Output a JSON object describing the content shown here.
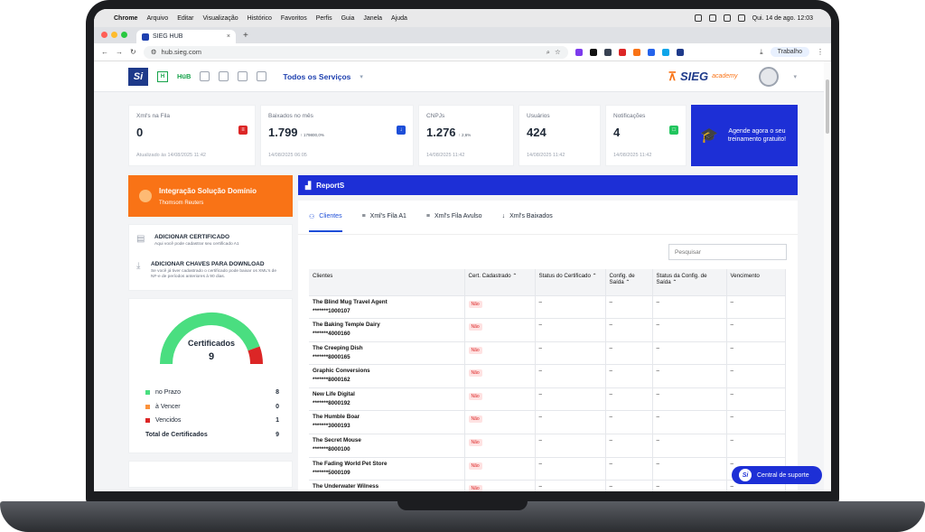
{
  "mac_menu": {
    "app": "Chrome",
    "items": [
      "Arquivo",
      "Editar",
      "Visualização",
      "Histórico",
      "Favoritos",
      "Perfis",
      "Guia",
      "Janela",
      "Ajuda"
    ],
    "datetime": "Qui. 14 de ago.  12:03"
  },
  "browser": {
    "tab_title": "SIEG HUB",
    "url": "hub.sieg.com",
    "profile": "Trabalho"
  },
  "nav": {
    "logo": "Si",
    "hub": "HüB",
    "services": "Todos os Serviços",
    "brand": "SIEG",
    "academy": "academy"
  },
  "stats": [
    {
      "label": "Xml's na Fila",
      "value": "0",
      "sub": "",
      "updated": "Atualizado às 14/08/2025 11:42",
      "badge_color": "#dc2626"
    },
    {
      "label": "Baixados no mês",
      "value": "1.799",
      "sub": "↑ 179800,0%",
      "updated": "14/08/2025 06:05",
      "badge_color": "#1d4ed8"
    },
    {
      "label": "CNPJs",
      "value": "1.276",
      "sub": "↑ 2,6%",
      "updated": "14/08/2025 11:42",
      "badge_color": ""
    },
    {
      "label": "Usuários",
      "value": "424",
      "sub": "",
      "updated": "14/08/2025 11:42",
      "badge_color": ""
    },
    {
      "label": "Notificações",
      "value": "4",
      "sub": "",
      "updated": "14/08/2025 11:42",
      "badge_color": "#22c55e"
    }
  ],
  "cta": {
    "text": "Agende agora o seu treinamento gratuito!"
  },
  "integration": {
    "title": "Integração Solução Domínio",
    "subtitle": "Thomsom Reuters"
  },
  "actions": [
    {
      "title": "ADICIONAR CERTIFICADO",
      "desc": "Aqui você pode cadastrar seu certificado A1"
    },
    {
      "title": "ADICIONAR CHAVES PARA DOWNLOAD",
      "desc": "Se você já tiver cadastrado o certificado pode baixar os XML's de NF-e de períodos anteriores à 90 dias."
    }
  ],
  "certificates": {
    "title": "Certificados",
    "total": "9",
    "legend": [
      {
        "label": "no Prazo",
        "count": "8",
        "color": "#4ade80"
      },
      {
        "label": "à Vencer",
        "count": "0",
        "color": "#fb923c"
      },
      {
        "label": "Vencidos",
        "count": "1",
        "color": "#dc2626"
      }
    ],
    "total_label": "Total de Certificados",
    "total_count": "9",
    "share_ok": 0.889,
    "share_expired": 0.111
  },
  "reports": {
    "title": "ReportS",
    "tabs": [
      "Clientes",
      "Xml's Fila A1",
      "Xml's Fila Avulso",
      "Xml's Baixados"
    ],
    "search_placeholder": "Pesquisar",
    "columns": [
      "Clientes",
      "Cert. Cadastrado",
      "Status do Certificado",
      "Config. de Saída",
      "Status da Config. de Saída",
      "Vencimento"
    ],
    "rows": [
      {
        "name": "The Blind Mug Travel Agent",
        "code": "*******1000107",
        "cert": "Não"
      },
      {
        "name": "The Baking Temple Dairy",
        "code": "*******4000160",
        "cert": "Não"
      },
      {
        "name": "The Creeping Dish",
        "code": "*******8000165",
        "cert": "Não"
      },
      {
        "name": "Graphic Conversions",
        "code": "*******8000162",
        "cert": "Não"
      },
      {
        "name": "New Life Digital",
        "code": "*******8000192",
        "cert": "Não"
      },
      {
        "name": "The Humble Boar",
        "code": "*******3000193",
        "cert": "Não"
      },
      {
        "name": "The Secret Mouse",
        "code": "*******8000100",
        "cert": "Não"
      },
      {
        "name": "The Fading World Pet Store",
        "code": "*******5000109",
        "cert": "Não"
      },
      {
        "name": "The Underwater Wilness",
        "code": "",
        "cert": "Não"
      }
    ],
    "dash": "–"
  },
  "support": {
    "label": "Central de suporte"
  }
}
